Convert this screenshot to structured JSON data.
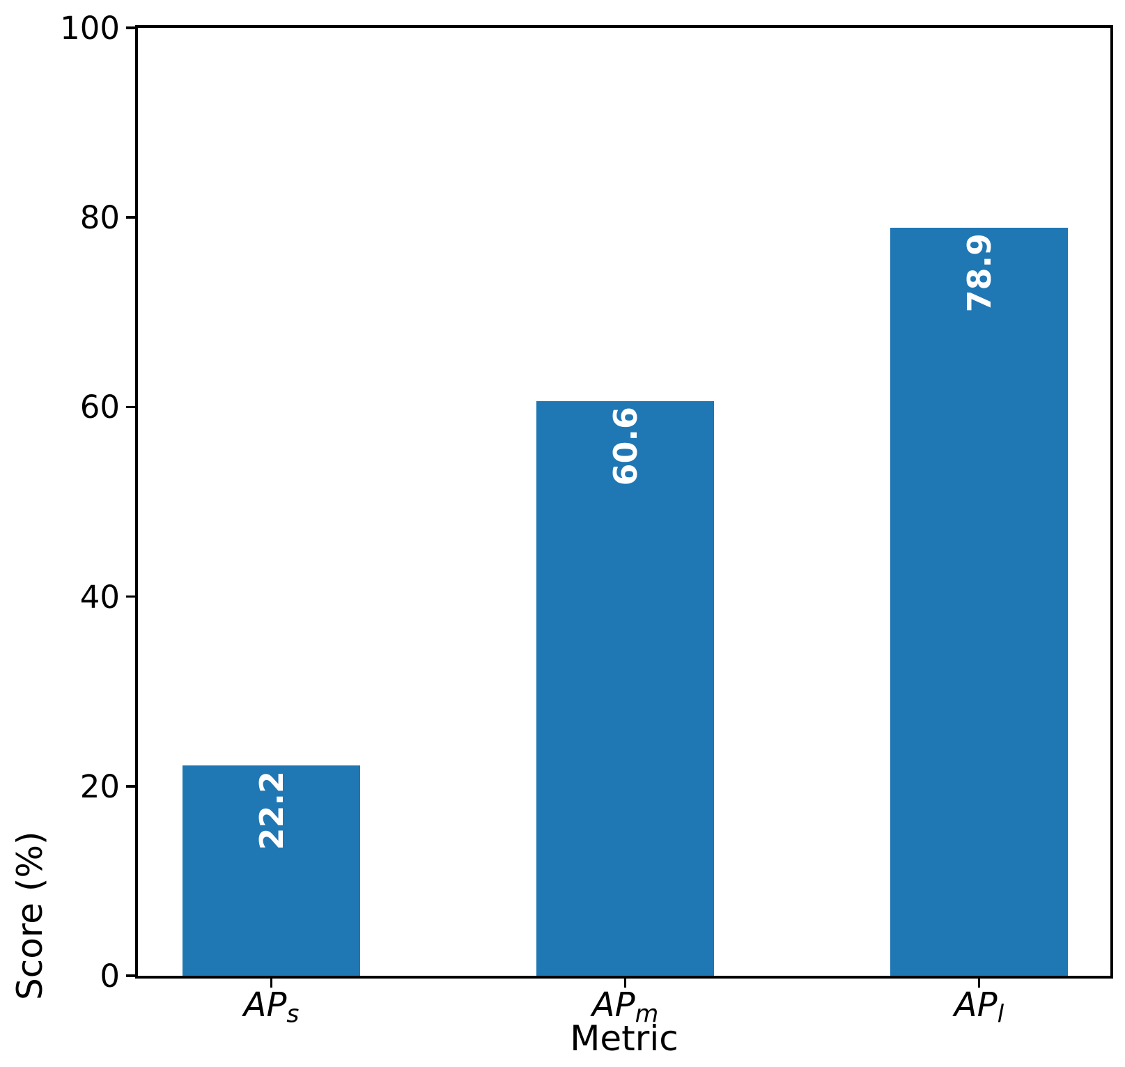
{
  "chart_data": {
    "type": "bar",
    "categories": [
      {
        "base": "AP",
        "sub": "s"
      },
      {
        "base": "AP",
        "sub": "m"
      },
      {
        "base": "AP",
        "sub": "l"
      }
    ],
    "values": [
      22.2,
      60.6,
      78.9
    ],
    "value_labels": [
      "22.2",
      "60.6",
      "78.9"
    ],
    "title": "",
    "xlabel": "Metric",
    "ylabel": "Score (%)",
    "yticks": [
      0,
      20,
      40,
      60,
      80,
      100
    ],
    "ytick_labels": [
      "0",
      "20",
      "40",
      "60",
      "80",
      "100"
    ],
    "ylim": [
      0,
      100
    ],
    "grid": "off",
    "legend": "none",
    "bar_color": "#1f77b4",
    "bar_label_color": "#ffffff",
    "axis_color": "#000000"
  }
}
